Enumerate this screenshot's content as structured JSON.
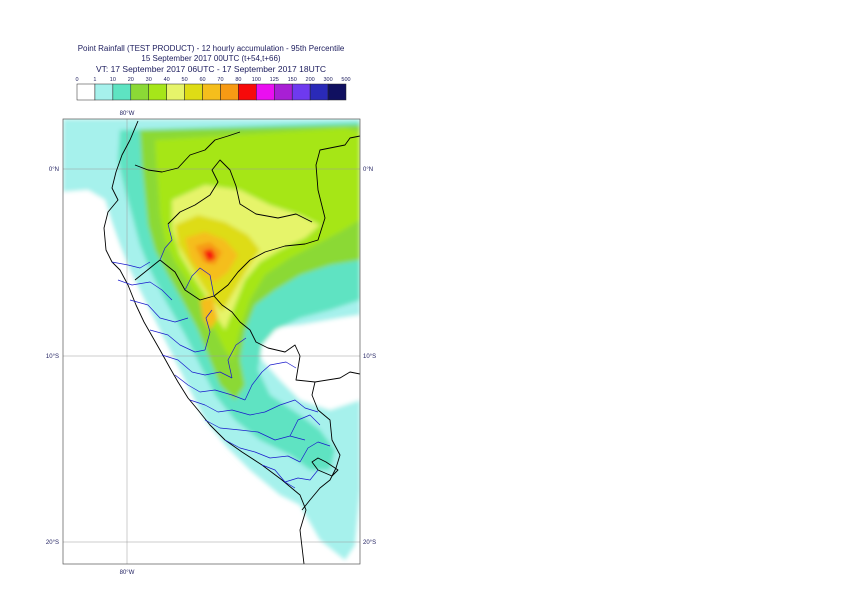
{
  "header": {
    "line1": "Point Rainfall (TEST PRODUCT) - 12 hourly accumulation - 95th Percentile",
    "line2": "15 September 2017 00UTC (t+54,t+66)",
    "line3": "VT: 17 September 2017 06UTC - 17 September 2017 18UTC"
  },
  "legend": {
    "thresholds": [
      "0",
      "1",
      "10",
      "20",
      "30",
      "40",
      "50",
      "60",
      "70",
      "80",
      "100",
      "125",
      "150",
      "200",
      "300",
      "500"
    ],
    "colors": [
      "#ffffff",
      "#a6f1ec",
      "#5ee3c2",
      "#8bd936",
      "#a6e619",
      "#e6f46a",
      "#dedc15",
      "#f5be1c",
      "#f79a14",
      "#f70a0a",
      "#ea0ff0",
      "#a81fd4",
      "#6e3aef",
      "#2a2ab8",
      "#101060"
    ]
  },
  "map": {
    "lon_labels": [
      {
        "text": "80°W",
        "position": "top"
      },
      {
        "text": "80°W",
        "position": "bottom"
      }
    ],
    "lat_labels": [
      {
        "text": "0°N",
        "lat": 0
      },
      {
        "text": "10°S",
        "lat": -10
      },
      {
        "text": "20°S",
        "lat": -20
      }
    ],
    "lat_labels_right": [
      {
        "text": "0°N",
        "lat": 0
      },
      {
        "text": "10°S",
        "lat": -10
      },
      {
        "text": "20°S",
        "lat": -20
      }
    ]
  }
}
